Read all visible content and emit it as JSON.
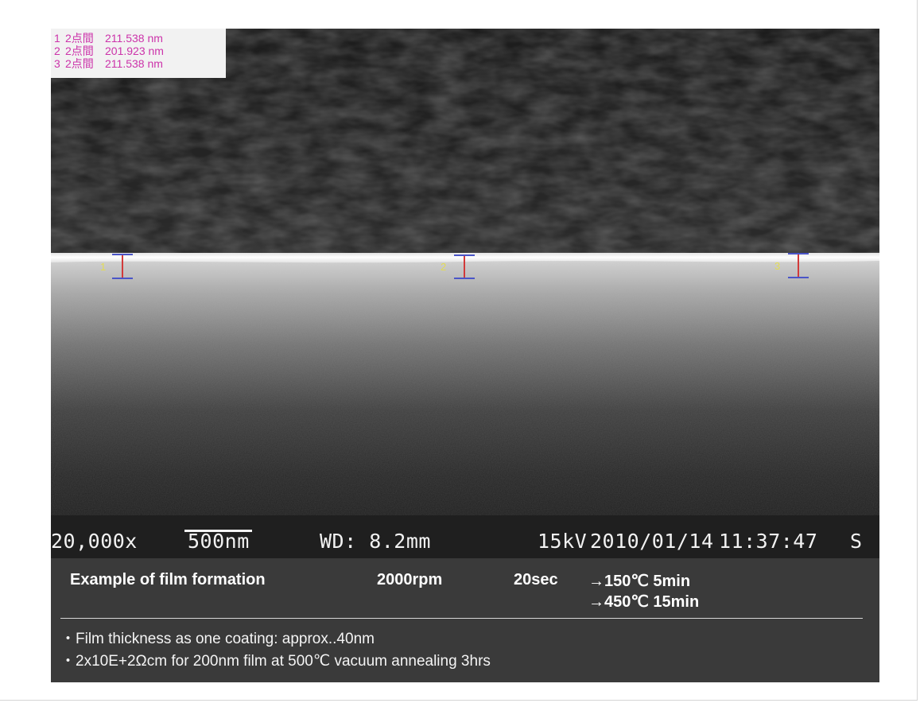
{
  "measurements": [
    {
      "index": "1",
      "label": "2点間",
      "value": "211.538 nm"
    },
    {
      "index": "2",
      "label": "2点間",
      "value": "201.923 nm"
    },
    {
      "index": "3",
      "label": "2点間",
      "value": "211.538 nm"
    }
  ],
  "markers": [
    "1",
    "2",
    "3"
  ],
  "sem_info": {
    "magnification": "20,000x",
    "scale": "500nm",
    "working_distance": "WD: 8.2mm",
    "voltage": "15kV",
    "date": "2010/01/14",
    "time": "11:37:47",
    "mode": "S"
  },
  "caption": {
    "title": "Example of film formation",
    "speed": "2000rpm",
    "duration": "20sec",
    "step1": "→150℃ 5min",
    "step2": "→450℃ 15min",
    "notes": [
      "・Film thickness as one coating: approx..40nm",
      "・2x10E+2Ωcm for 200nm film at 500℃ vacuum annealing 3hrs"
    ]
  },
  "colors": {
    "measure_text": "#cc33aa",
    "marker_red": "#d23a3a",
    "marker_blue": "#4a55c8",
    "marker_label": "#e8e040",
    "caption_bg": "#3a3a3a"
  }
}
